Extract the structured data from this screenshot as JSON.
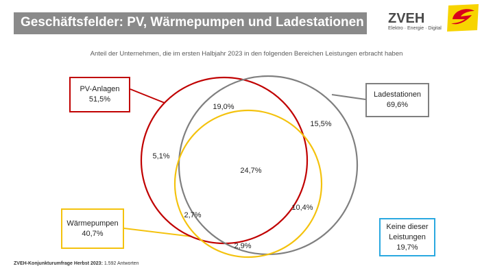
{
  "header": {
    "title": "Geschäftsfelder: PV, Wärmepumpen und Ladestationen",
    "logo_name": "ZVEH",
    "logo_tagline": "Elektro · Energie · Digital"
  },
  "subtitle": "Anteil der Unternehmen, die im ersten Halbjahr 2023 in den folgenden Bereichen Leistungen erbracht haben",
  "sets": [
    {
      "name": "PV-Anlagen",
      "value": "51,5%",
      "color": "#c00000"
    },
    {
      "name": "Ladestationen",
      "value": "69,6%",
      "color": "#7f7f7f"
    },
    {
      "name": "Wärmepumpen",
      "value": "40,7%",
      "color": "#f4c20d"
    }
  ],
  "none_set": {
    "line1": "Keine dieser",
    "line2": "Leistungen",
    "value": "19,7%",
    "color": "#29a8e0"
  },
  "regions": {
    "pv_lade_only": "19,0%",
    "lade_only": "15,5%",
    "pv_only": "5,1%",
    "all_three": "24,7%",
    "lade_waerme_only": "10,4%",
    "pv_waerme_only": "2,7%",
    "waerme_only": "2,9%"
  },
  "footer": {
    "source": "ZVEH-Konjunkturumfrage Herbst 2023:",
    "responses": "1.592 Antworten"
  }
}
